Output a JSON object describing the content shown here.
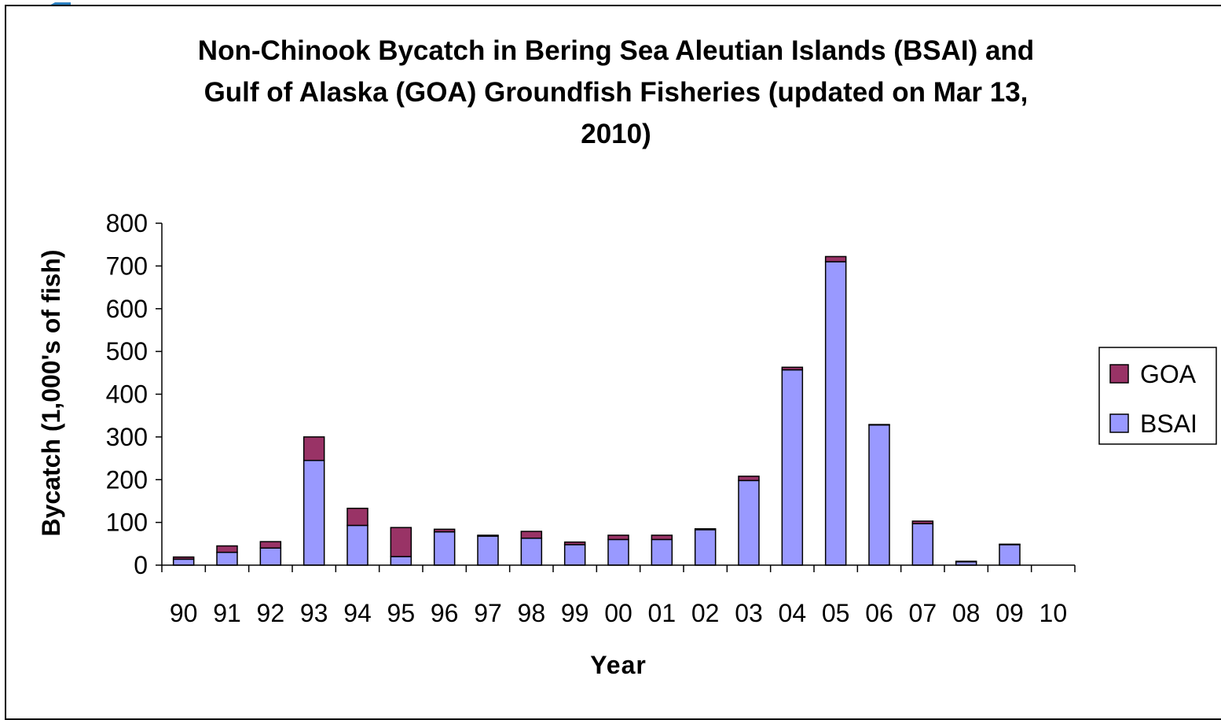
{
  "chart_data": {
    "type": "bar",
    "stacked": true,
    "title_lines": [
      "Non-Chinook Bycatch in Bering Sea Aleutian Islands (BSAI) and",
      "Gulf of Alaska (GOA) Groundfish Fisheries (updated on Mar 13,",
      "2010)"
    ],
    "xlabel": "Year",
    "ylabel": "Bycatch (1,000's of fish)",
    "ylim": [
      0,
      800
    ],
    "yticks": [
      0,
      100,
      200,
      300,
      400,
      500,
      600,
      700,
      800
    ],
    "categories": [
      "90",
      "91",
      "92",
      "93",
      "94",
      "95",
      "96",
      "97",
      "98",
      "99",
      "00",
      "01",
      "02",
      "03",
      "04",
      "05",
      "06",
      "07",
      "08",
      "09",
      "10"
    ],
    "series": [
      {
        "name": "BSAI",
        "color": "#9999ff",
        "values": [
          14,
          30,
          40,
          245,
          93,
          20,
          78,
          68,
          63,
          48,
          60,
          60,
          83,
          198,
          457,
          710,
          328,
          97,
          8,
          48,
          0
        ]
      },
      {
        "name": "GOA",
        "color": "#993366",
        "values": [
          5,
          15,
          15,
          55,
          40,
          68,
          6,
          2,
          16,
          6,
          10,
          10,
          2,
          10,
          6,
          12,
          1,
          6,
          1,
          1,
          0
        ]
      }
    ],
    "legend": {
      "position": "right",
      "entries": [
        "GOA",
        "BSAI"
      ]
    },
    "grid": false
  }
}
